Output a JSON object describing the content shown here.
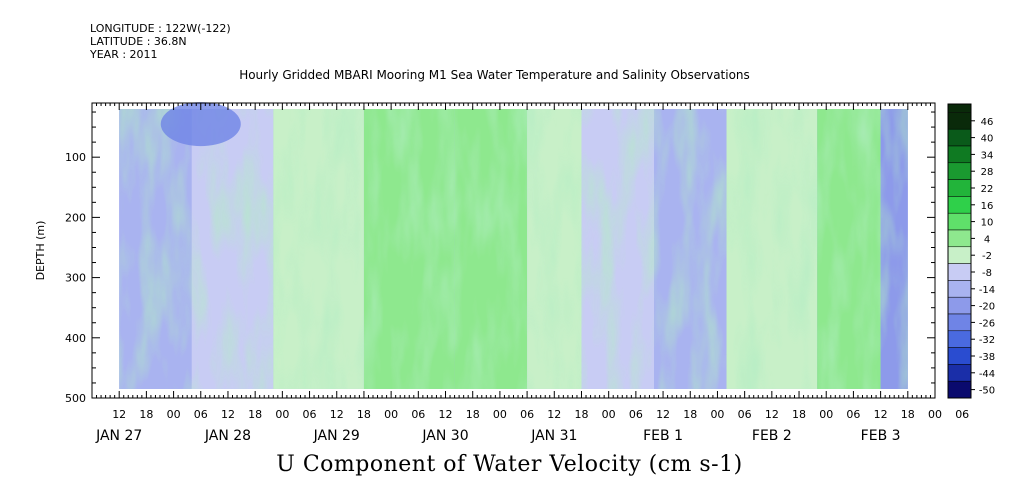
{
  "header": {
    "longitude": "LONGITUDE : 122W(-122)",
    "latitude": "LATITUDE : 36.8N",
    "year": "YEAR : 2011"
  },
  "chart_data": {
    "type": "heatmap",
    "title": "Hourly Gridded MBARI Mooring M1 Sea Water Temperature and Salinity Observations",
    "variable_label": "U Component of Water Velocity (cm s-1)",
    "ylabel": "DEPTH (m)",
    "ylim": [
      500,
      10
    ],
    "y_ticks": [
      100,
      200,
      300,
      400,
      500
    ],
    "x_hour_ticks": [
      "12",
      "18",
      "00",
      "06",
      "12",
      "18",
      "00",
      "06",
      "12",
      "18",
      "00",
      "06",
      "12",
      "18",
      "00",
      "06",
      "12",
      "18",
      "00",
      "06",
      "12",
      "18",
      "00",
      "06",
      "12",
      "18",
      "00",
      "06",
      "12",
      "18",
      "00",
      "06"
    ],
    "x_date_labels": [
      "JAN 27",
      "JAN 28",
      "JAN 29",
      "JAN 30",
      "JAN 31",
      "FEB  1",
      "FEB  2",
      "FEB  3"
    ],
    "x_range_hours": [
      0,
      186
    ],
    "data_range_hours": [
      6,
      180
    ],
    "data_depth_range": [
      20,
      485
    ],
    "colorbar": {
      "levels": [
        "46",
        "40",
        "34",
        "28",
        "22",
        "16",
        "10",
        "4",
        "-2",
        "-8",
        "-14",
        "-20",
        "-26",
        "-32",
        "-38",
        "-44",
        "-50"
      ],
      "min": -50,
      "max": 52,
      "step": 6
    },
    "colors": {
      "strong_negative": "#0a0a6e",
      "negative": "#4a6ae0",
      "weak_negative": "#a9b3f0",
      "near_zero": "#c8f0c8",
      "weak_positive": "#8ee88e",
      "positive": "#2fd04a",
      "strong_positive": "#0a5a1a"
    },
    "regions": [
      {
        "t0": 6,
        "t1": 22,
        "value": -8
      },
      {
        "t0": 22,
        "t1": 40,
        "value": -2
      },
      {
        "t0": 40,
        "t1": 60,
        "value": 4
      },
      {
        "t0": 60,
        "t1": 80,
        "value": 10
      },
      {
        "t0": 80,
        "t1": 96,
        "value": 10
      },
      {
        "t0": 96,
        "t1": 108,
        "value": 4
      },
      {
        "t0": 108,
        "t1": 124,
        "value": -2
      },
      {
        "t0": 124,
        "t1": 140,
        "value": -8
      },
      {
        "t0": 140,
        "t1": 160,
        "value": 4
      },
      {
        "t0": 160,
        "t1": 174,
        "value": 10
      },
      {
        "t0": 174,
        "t1": 180,
        "value": -14
      }
    ]
  }
}
